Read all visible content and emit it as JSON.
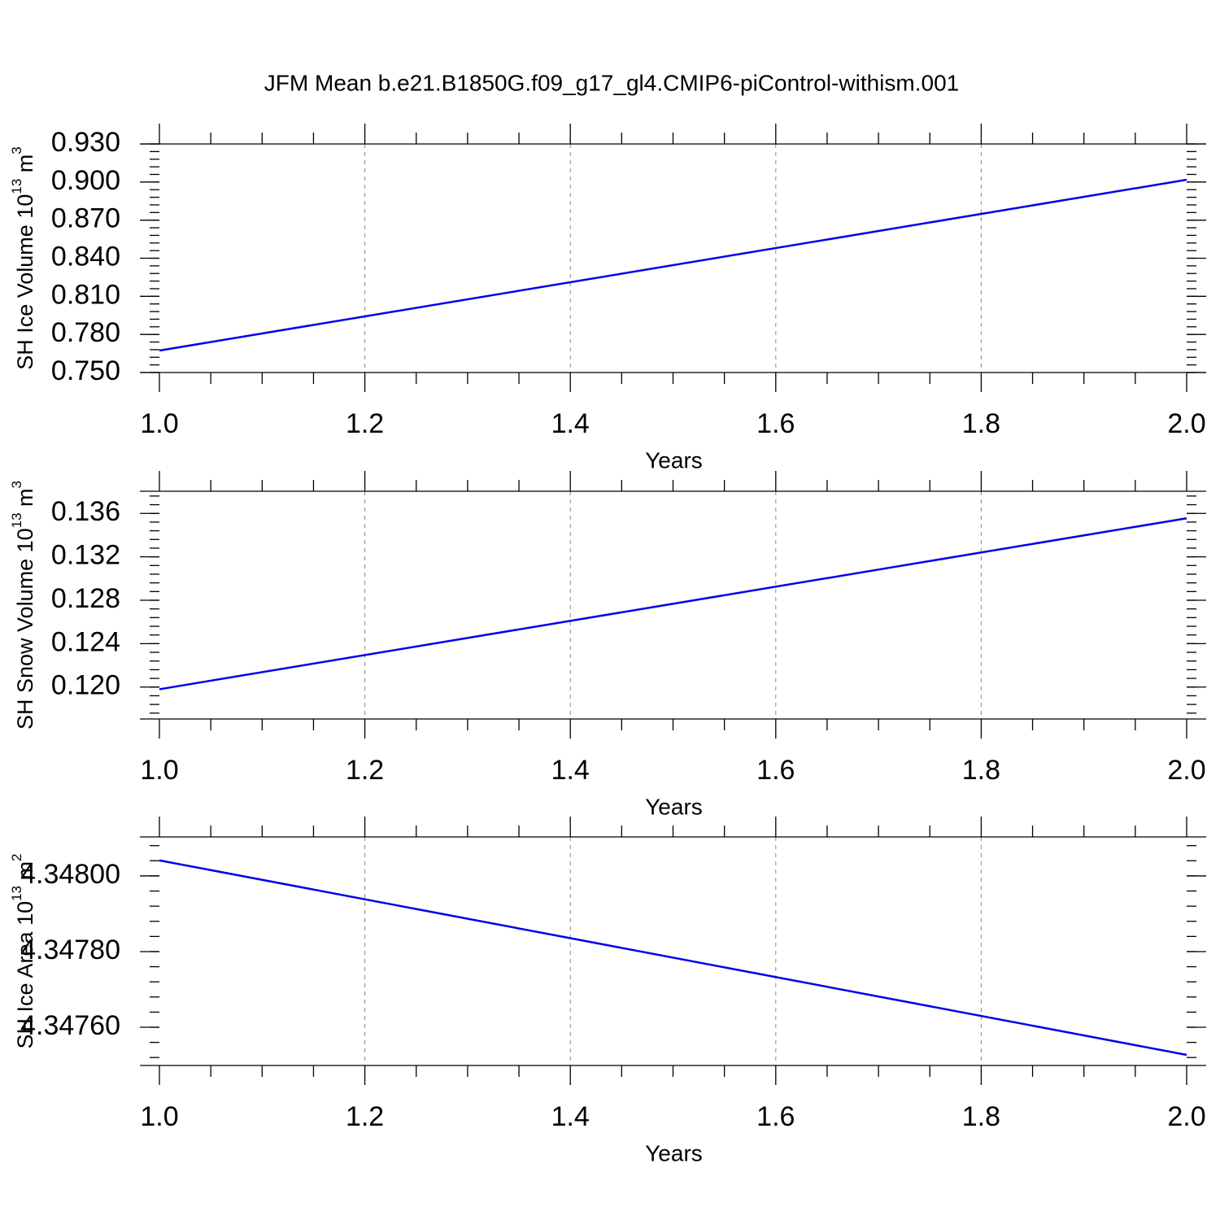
{
  "title": "JFM Mean b.e21.B1850G.f09_g17_gl4.CMIP6-piControl-withism.001",
  "chart_data": [
    {
      "type": "line",
      "x": [
        1.0,
        2.0
      ],
      "series": [
        {
          "color": "#0000ee",
          "values": [
            0.7673,
            0.9018
          ]
        }
      ],
      "xlim": [
        1.0,
        2.0
      ],
      "xticks": [
        {
          "value": 1.0,
          "label": "1.0"
        },
        {
          "value": 1.2,
          "label": "1.2"
        },
        {
          "value": 1.4,
          "label": "1.4"
        },
        {
          "value": 1.6,
          "label": "1.6"
        },
        {
          "value": 1.8,
          "label": "1.8"
        },
        {
          "value": 2.0,
          "label": "2.0"
        }
      ],
      "ylim": [
        0.75,
        0.93
      ],
      "yticks": [
        {
          "value": 0.75,
          "label": "0.750"
        },
        {
          "value": 0.78,
          "label": "0.780"
        },
        {
          "value": 0.81,
          "label": "0.810"
        },
        {
          "value": 0.84,
          "label": "0.840"
        },
        {
          "value": 0.87,
          "label": "0.870"
        },
        {
          "value": 0.9,
          "label": "0.900"
        },
        {
          "value": 0.93,
          "label": "0.930"
        }
      ],
      "x_label": "Years",
      "y_label": {
        "text": "SH Ice Volume 10",
        "exp": "13",
        "unit": "m",
        "unit_exp": "3"
      },
      "grid": true
    },
    {
      "type": "line",
      "x": [
        1.0,
        2.0
      ],
      "series": [
        {
          "color": "#0000ee",
          "values": [
            0.1198,
            0.13555
          ]
        }
      ],
      "xlim": [
        1.0,
        2.0
      ],
      "xticks": [
        {
          "value": 1.0,
          "label": "1.0"
        },
        {
          "value": 1.2,
          "label": "1.2"
        },
        {
          "value": 1.4,
          "label": "1.4"
        },
        {
          "value": 1.6,
          "label": "1.6"
        },
        {
          "value": 1.8,
          "label": "1.8"
        },
        {
          "value": 2.0,
          "label": "2.0"
        }
      ],
      "ylim": [
        0.11706,
        0.13804
      ],
      "yticks": [
        {
          "value": 0.12,
          "label": "0.120"
        },
        0.124,
        0.128,
        0.132,
        0.136
      ],
      "x_label": "Years",
      "y_label": {
        "text": "SH Snow Volume 10",
        "exp": "13",
        "unit": "m",
        "unit_exp": "3"
      },
      "grid": true
    },
    {
      "type": "line",
      "x": [
        1.0,
        2.0
      ],
      "series": [
        {
          "color": "#0000ee",
          "values": [
            4.348041,
            4.347527
          ]
        }
      ],
      "xlim": [
        1.0,
        2.0
      ],
      "xticks": [
        {
          "value": 1.0,
          "label": "1.0"
        },
        {
          "value": 1.2,
          "label": "1.2"
        },
        {
          "value": 1.4,
          "label": "1.4"
        },
        {
          "value": 1.6,
          "label": "1.6"
        },
        {
          "value": 1.8,
          "label": "1.8"
        },
        {
          "value": 2.0,
          "label": "2.0"
        }
      ],
      "ylim": [
        4.347499,
        4.348103
      ],
      "yticks": [
        {
          "value": 4.3476,
          "label": "4.34760"
        },
        {
          "value": 4.3478,
          "label": "4.34780"
        },
        {
          "value": 4.348,
          "label": "4.34800"
        }
      ],
      "x_label": "Years",
      "y_label": {
        "text": "SH Ice Area 10",
        "exp": "13",
        "unit": "m",
        "unit_exp": "2"
      },
      "grid": true
    }
  ]
}
